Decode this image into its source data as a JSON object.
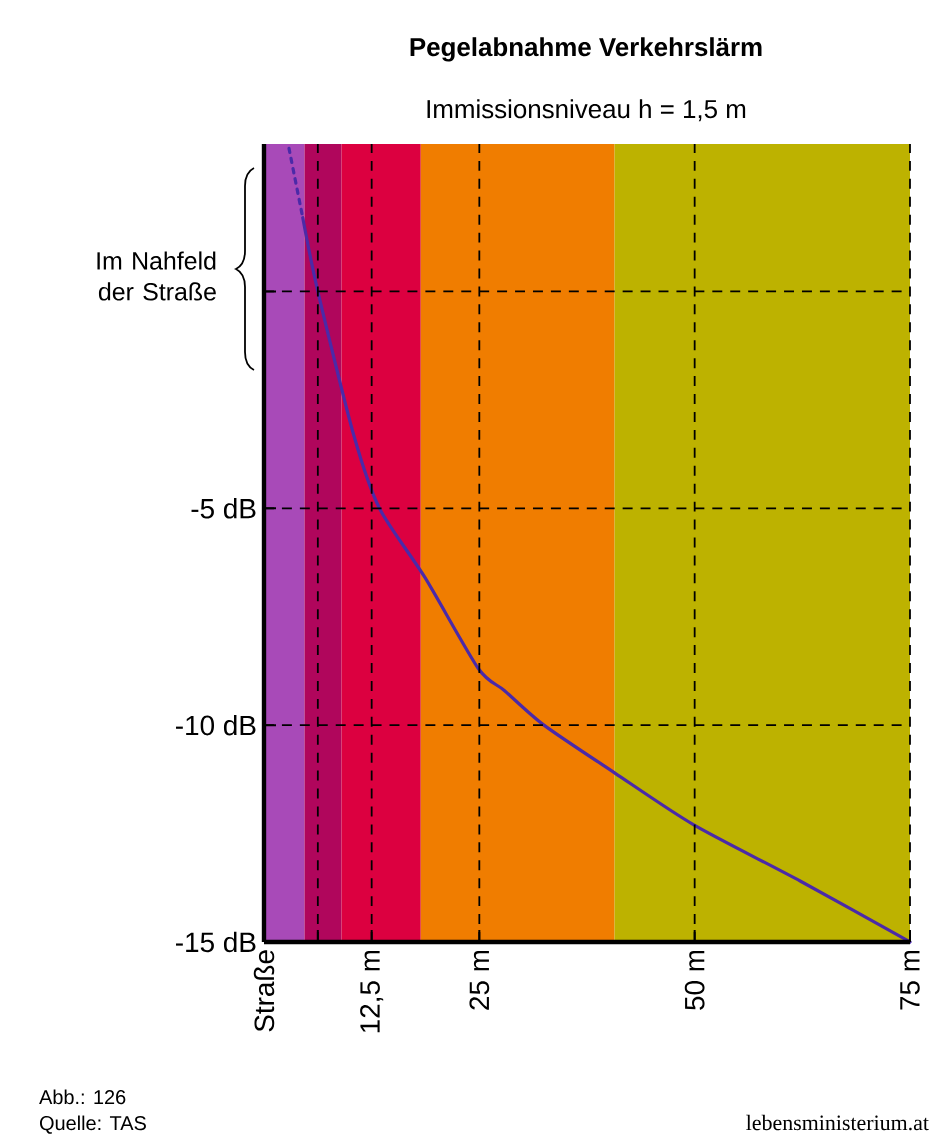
{
  "chart_data": {
    "type": "line",
    "title": "Pegelabnahme Verkehrslärm",
    "subtitle": "Immissionsniveau h = 1,5 m",
    "series": [
      {
        "color": "#4b2aa8",
        "line_style": "dotted",
        "x": [
          2.9,
          4.5
        ],
        "values": [
          3.3,
          1.7
        ]
      },
      {
        "color": "#4b2aa8",
        "line_style": "solid",
        "x": [
          4.5,
          6.25,
          10.4,
          13.4,
          18.7,
          24.9,
          27.9,
          32.5,
          40.7,
          49.9,
          62.3,
          75
        ],
        "values": [
          1.7,
          0,
          -3.3,
          -5,
          -6.6,
          -8.7,
          -9.2,
          -10,
          -11.1,
          -12.3,
          -13.6,
          -15
        ]
      }
    ],
    "xlim": [
      0,
      75
    ],
    "ylim": [
      -15,
      3.4
    ],
    "xticks": [
      {
        "value": 0,
        "label": "Straße"
      },
      {
        "value": 6.25,
        "label": null
      },
      {
        "value": 12.5,
        "label": "12,5 m"
      },
      {
        "value": 25,
        "label": "25 m"
      },
      {
        "value": 50,
        "label": "50 m"
      },
      {
        "value": 75,
        "label": "75 m"
      }
    ],
    "yticks": [
      {
        "value": -15,
        "label": "-15 dB"
      },
      {
        "value": -10,
        "label": "-10 dB"
      },
      {
        "value": -5,
        "label": "-5 dB"
      },
      {
        "value": 0,
        "label": null
      }
    ],
    "grid": true,
    "bands": [
      {
        "axis": "x",
        "from": 0,
        "to": 4.7,
        "color": "#a84ab8"
      },
      {
        "axis": "x",
        "from": 4.7,
        "to": 9,
        "color": "#b0065c"
      },
      {
        "axis": "x",
        "from": 9,
        "to": 18.2,
        "color": "#dc0040"
      },
      {
        "axis": "x",
        "from": 18.2,
        "to": 40.7,
        "color": "#f07d00"
      },
      {
        "axis": "x",
        "from": 40.7,
        "to": 75,
        "color": "#bdb200"
      }
    ],
    "annotations": [
      "Im Nahfeld der Straße",
      "Abb.: 126",
      "Quelle: TAS",
      "lebensministerium.at"
    ]
  }
}
